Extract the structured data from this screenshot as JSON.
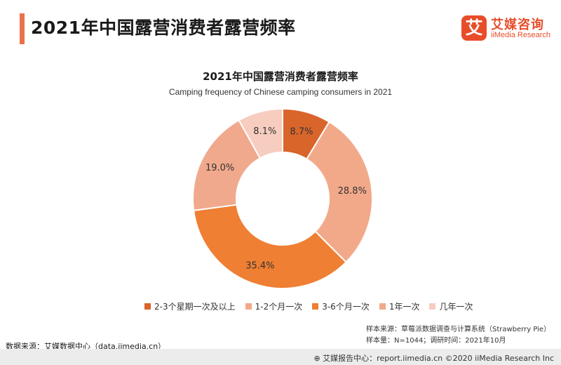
{
  "header": {
    "title": "2021年中国露营消费者露营频率",
    "logo_cn": "艾媒咨询",
    "logo_en": "iiMedia Research",
    "logo_mark": "艾"
  },
  "chart_data": {
    "type": "pie",
    "title": "2021年中国露营消费者露营频率",
    "subtitle": "Camping frequency of Chinese camping consumers in 2021",
    "unit": "%",
    "donut": true,
    "legend_position": "bottom",
    "categories": [
      "2-3个星期一次及以上",
      "1-2个月一次",
      "3-6个月一次",
      "1年一次",
      "几年一次"
    ],
    "values": [
      8.7,
      28.8,
      35.4,
      19.0,
      8.1
    ],
    "labels": [
      "8.7%",
      "28.8%",
      "35.4%",
      "19.0%",
      "8.1%"
    ],
    "colors": [
      "#d9652b",
      "#f2a98a",
      "#ef7f33",
      "#f0a98d",
      "#f7cdbf"
    ]
  },
  "notes": {
    "sample_source": "样本来源：草莓派数据调查与计算系统（Strawberry Pie）",
    "sample_size": "样本量：N=1044；调研时间：2021年10月"
  },
  "source": "数据来源：艾媒数据中心（data.iimedia.cn）",
  "footer": "⊕ 艾媒报告中心：report.iimedia.cn   ©2020  iiMedia Research  Inc"
}
